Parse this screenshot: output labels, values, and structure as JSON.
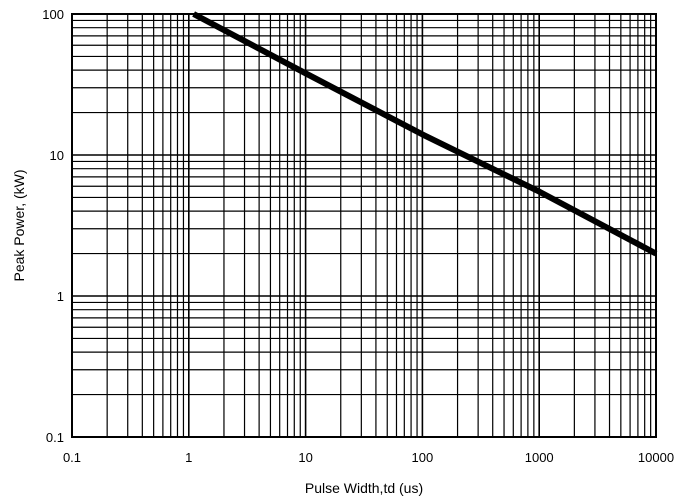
{
  "chart_data": {
    "type": "line",
    "title": "",
    "xlabel": "Pulse Width,td (us)",
    "ylabel": "Peak Power, (kW)",
    "xscale": "log",
    "yscale": "log",
    "xlim": [
      0.1,
      10000
    ],
    "ylim": [
      0.1,
      100
    ],
    "x_ticks": [
      0.1,
      1,
      10,
      100,
      1000,
      10000
    ],
    "x_tick_labels": [
      "0.1",
      "1",
      "10",
      "100",
      "1000",
      "10000"
    ],
    "y_ticks": [
      0.1,
      1,
      10,
      100
    ],
    "y_tick_labels": [
      "0.1",
      "1",
      "10",
      "100"
    ],
    "grid": true,
    "legend": "none",
    "series": [
      {
        "color": "#000000",
        "x": [
          1.1,
          10,
          100,
          1000,
          10000
        ],
        "y": [
          100,
          38,
          14,
          5.5,
          2.0
        ]
      }
    ]
  }
}
